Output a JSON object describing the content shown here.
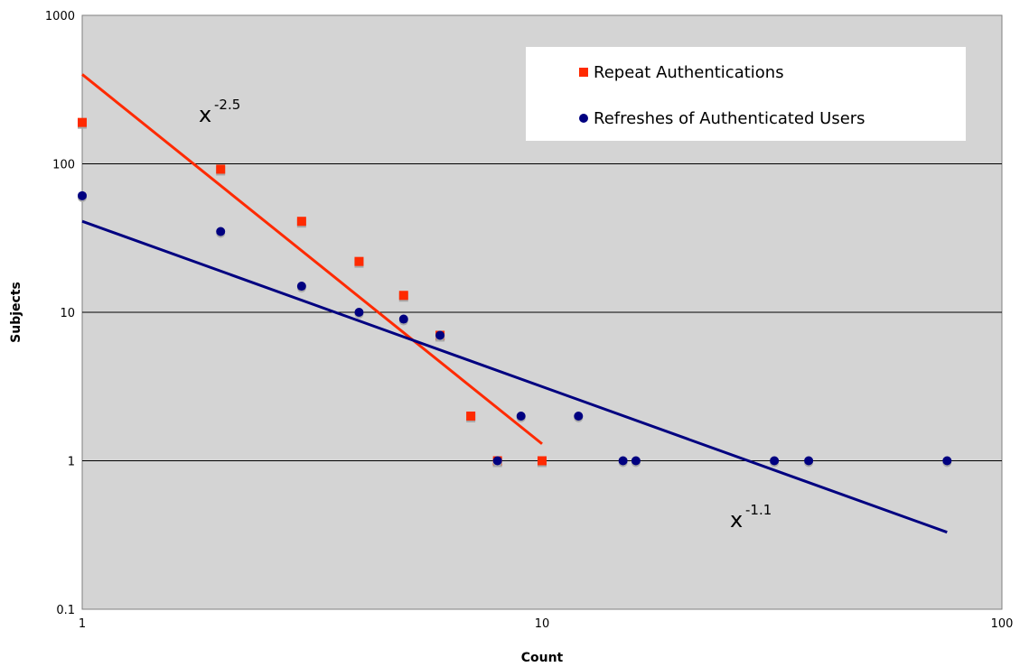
{
  "chart_data": {
    "type": "scatter",
    "xscale": "log",
    "yscale": "log",
    "xlim": [
      1,
      100
    ],
    "ylim": [
      0.1,
      1000
    ],
    "xlabel": "Count",
    "ylabel": "Subjects",
    "x_ticks": [
      "1",
      "10",
      "100"
    ],
    "y_ticks": [
      "0.1",
      "1",
      "10",
      "100",
      "1000"
    ],
    "grid": "horizontal major gridlines",
    "legend_position": "top-right",
    "series": [
      {
        "name": "Repeat Authentications",
        "marker": "square",
        "color": "#ff2a00",
        "points": [
          {
            "x": 1,
            "y": 190
          },
          {
            "x": 2,
            "y": 92
          },
          {
            "x": 3,
            "y": 41
          },
          {
            "x": 4,
            "y": 22
          },
          {
            "x": 5,
            "y": 13
          },
          {
            "x": 6,
            "y": 7
          },
          {
            "x": 7,
            "y": 2
          },
          {
            "x": 8,
            "y": 1
          },
          {
            "x": 10,
            "y": 1
          }
        ]
      },
      {
        "name": "Refreshes of Authenticated Users",
        "marker": "circle",
        "color": "#000080",
        "points": [
          {
            "x": 1,
            "y": 61
          },
          {
            "x": 2,
            "y": 35
          },
          {
            "x": 3,
            "y": 15
          },
          {
            "x": 4,
            "y": 10
          },
          {
            "x": 5,
            "y": 9
          },
          {
            "x": 6,
            "y": 7
          },
          {
            "x": 8,
            "y": 1
          },
          {
            "x": 9,
            "y": 2
          },
          {
            "x": 12,
            "y": 2
          },
          {
            "x": 15,
            "y": 1
          },
          {
            "x": 16,
            "y": 1
          },
          {
            "x": 32,
            "y": 1
          },
          {
            "x": 38,
            "y": 1
          },
          {
            "x": 76,
            "y": 1
          }
        ]
      }
    ],
    "trendlines": [
      {
        "label_base": "x",
        "label_exp": "-2.5",
        "color": "#ff2a00",
        "from": {
          "x": 1,
          "y": 400
        },
        "to": {
          "x": 10,
          "y": 1.3
        }
      },
      {
        "label_base": "x",
        "label_exp": "-1.1",
        "color": "#000080",
        "from": {
          "x": 1,
          "y": 41
        },
        "to": {
          "x": 76,
          "y": 0.33
        }
      }
    ]
  }
}
